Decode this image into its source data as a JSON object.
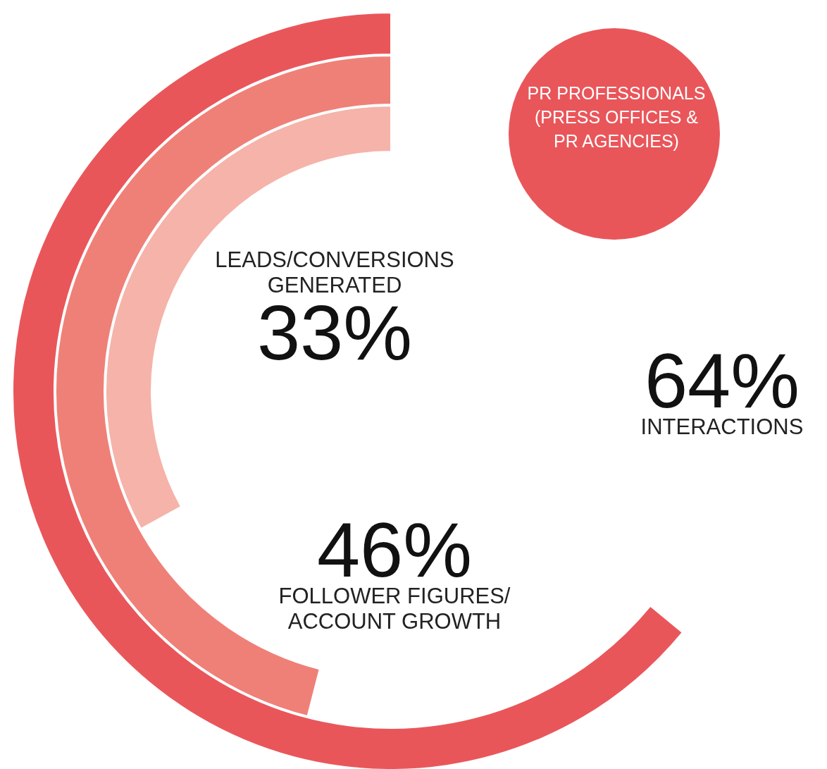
{
  "chart_data": {
    "type": "other",
    "title": "PR PROFESSIONALS (PRESS OFFICES & PR AGENCIES)",
    "categories": [
      "INTERACTIONS",
      "FOLLOWER FIGURES/ ACCOUNT GROWTH",
      "LEADS/CONVERSIONS GENERATED"
    ],
    "values": [
      64,
      46,
      33
    ],
    "colors": [
      "#e9565a",
      "#ef8078",
      "#f5b3aa"
    ],
    "value_labels": [
      "64%",
      "46%",
      "33%"
    ]
  }
}
